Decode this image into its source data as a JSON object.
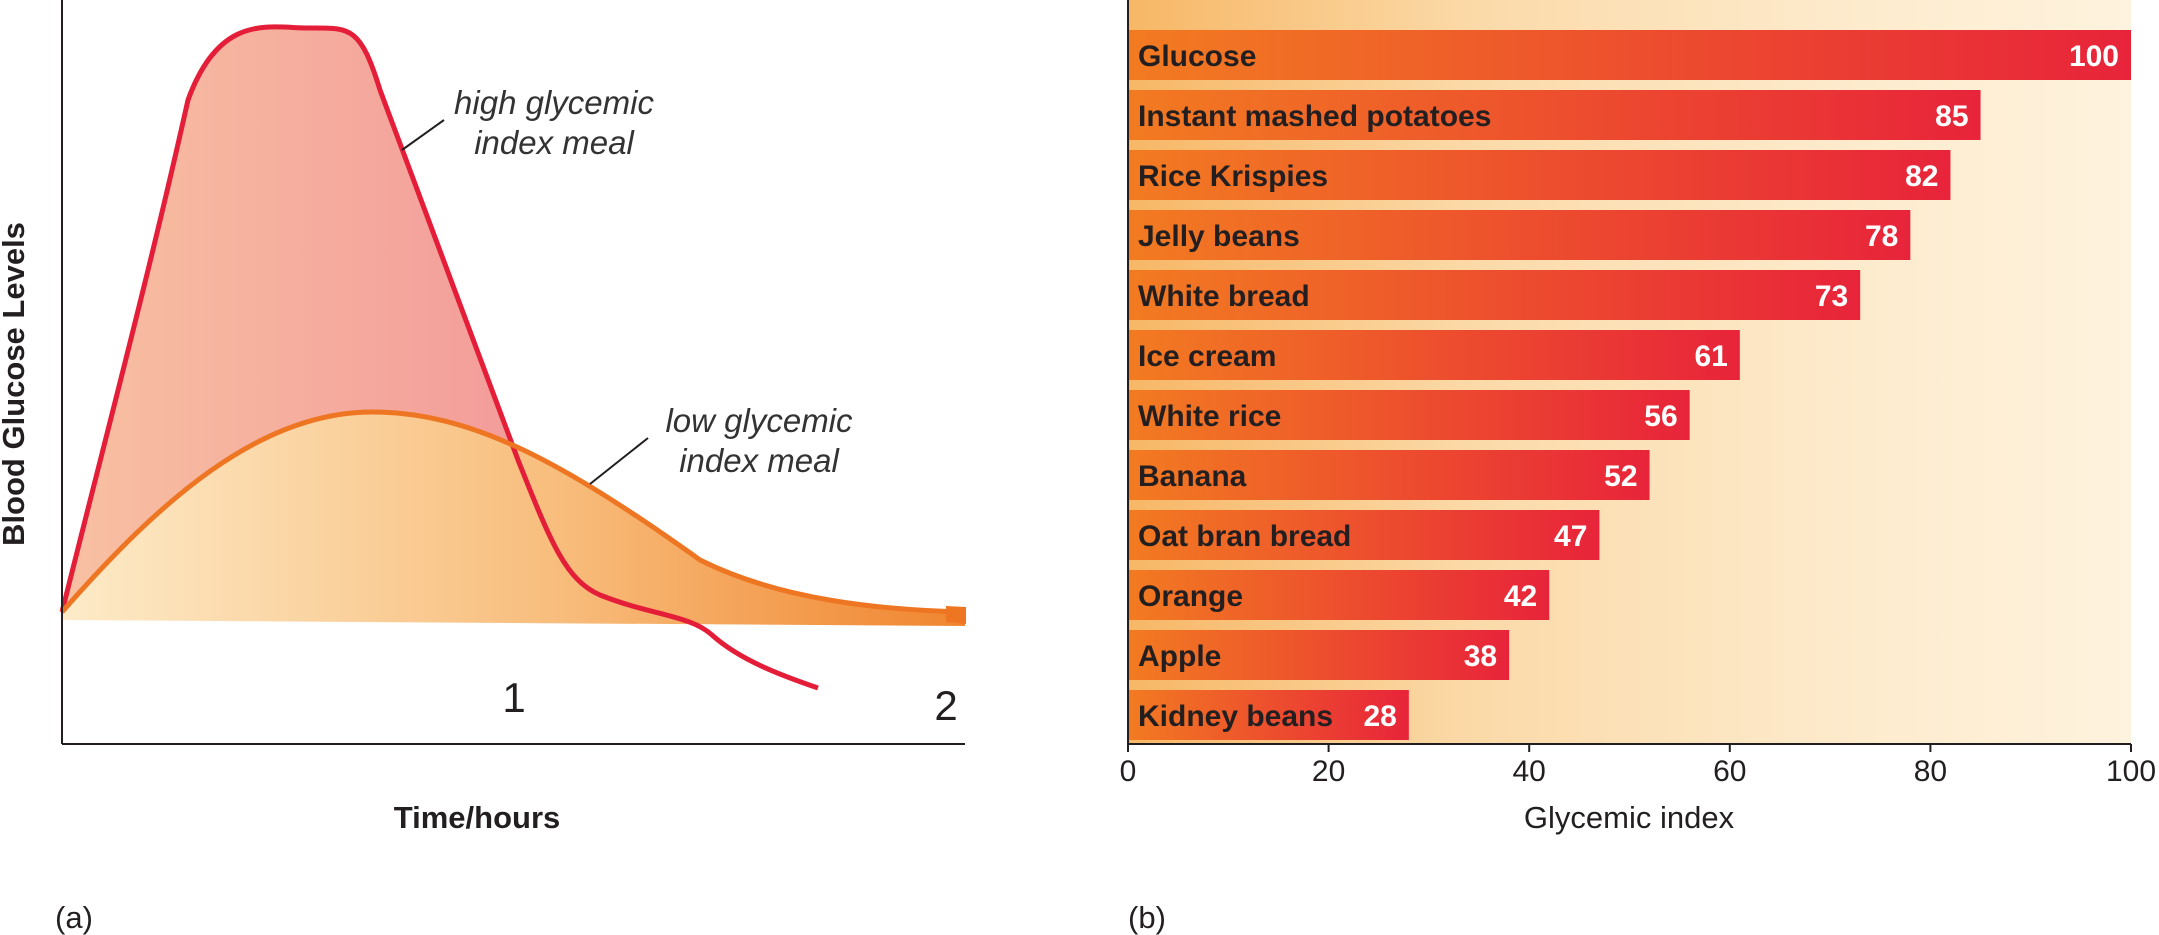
{
  "colors": {
    "high_curve": "#e41e39",
    "low_curve": "#ee7623",
    "bar_start": "#f27b21",
    "bar_end": "#e8243a",
    "panel_bg": "#fbe4bd",
    "axis": "#231f20"
  },
  "panel_a": {
    "label": "(a)",
    "xlabel": "Time/hours",
    "ylabel": "Blood Glucose Levels",
    "hour_ticks": [
      "1",
      "2"
    ],
    "high_label": [
      "high glycemic",
      "index meal"
    ],
    "low_label": [
      "low glycemic",
      "index meal"
    ]
  },
  "panel_b": {
    "label": "(b)"
  },
  "chart_data": [
    {
      "type": "line",
      "title": "",
      "xlabel": "Time/hours",
      "ylabel": "Blood Glucose Levels",
      "x_ticks": [
        1,
        2
      ],
      "grid": false,
      "series": [
        {
          "name": "high glycemic index meal",
          "x": [
            0,
            0.28,
            0.48,
            0.68,
            0.96,
            1.12,
            1.35,
            1.68
          ],
          "y": [
            0.2,
            0.97,
            1.0,
            0.88,
            0.35,
            0.2,
            0.15,
            0.0
          ]
        },
        {
          "name": "low glycemic index meal",
          "x": [
            0,
            0.35,
            0.68,
            1.0,
            1.42,
            1.7,
            2.0
          ],
          "y": [
            0.2,
            0.5,
            0.58,
            0.48,
            0.3,
            0.23,
            0.2
          ]
        }
      ]
    },
    {
      "type": "bar",
      "orientation": "horizontal",
      "title": "",
      "xlabel": "Glycemic index",
      "ylabel": "",
      "xlim": [
        0,
        100
      ],
      "x_ticks": [
        0,
        20,
        40,
        60,
        80,
        100
      ],
      "grid": false,
      "categories": [
        "Glucose",
        "Instant mashed potatoes",
        "Rice Krispies",
        "Jelly beans",
        "White bread",
        "Ice cream",
        "White rice",
        "Banana",
        "Oat bran bread",
        "Orange",
        "Apple",
        "Kidney beans"
      ],
      "values": [
        100,
        85,
        82,
        78,
        73,
        61,
        56,
        52,
        47,
        42,
        38,
        28
      ]
    }
  ]
}
